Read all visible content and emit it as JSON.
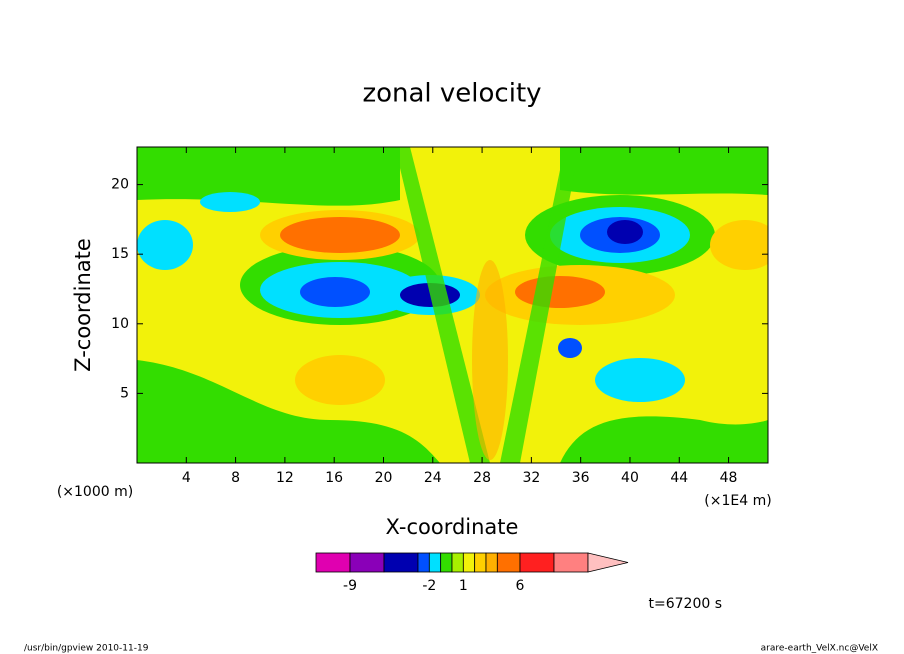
{
  "chart_data": {
    "type": "contour",
    "title": "zonal velocity",
    "x_label": "X-coordinate",
    "y_label": "Z-coordinate",
    "x_unit_left": "(×1000 m)",
    "x_unit_right": "(×1E4 m)",
    "xlim": [
      0,
      51.2
    ],
    "xticks": [
      4,
      8,
      12,
      16,
      20,
      24,
      28,
      32,
      36,
      40,
      44,
      48
    ],
    "ylim": [
      0,
      22.7
    ],
    "yticks": [
      5,
      10,
      15,
      20
    ],
    "colorbar": {
      "levels": [
        -12,
        -9,
        -6,
        -3,
        -2,
        -1,
        0,
        1,
        2,
        3,
        4,
        6,
        9,
        12
      ],
      "colors": [
        "#e000b0",
        "#8a00b8",
        "#0000b0",
        "#0050ff",
        "#00e0ff",
        "#33dd00",
        "#a8f000",
        "#f2f20a",
        "#ffd000",
        "#ffb000",
        "#ff7000",
        "#ff2020",
        "#ff8080"
      ],
      "over_color": "#ffc0c0",
      "ticks": [
        -9,
        -2,
        1,
        6
      ]
    },
    "time_label": "t=67200 s",
    "footer_left": "/usr/bin/gpview  2010-11-19",
    "footer_right": "arare-earth_VelX.nc@VelX"
  }
}
